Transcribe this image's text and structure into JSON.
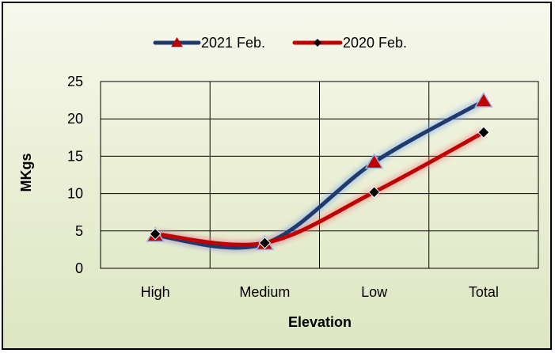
{
  "chart_data": {
    "type": "line",
    "categories": [
      "High",
      "Medium",
      "Low",
      "Total"
    ],
    "series": [
      {
        "name": "2021 Feb.",
        "values": [
          4.4,
          3.3,
          14.2,
          22.4
        ],
        "color": "#1f3a6e",
        "marker": "triangle",
        "marker_color": "#c00000"
      },
      {
        "name": "2020 Feb.",
        "values": [
          4.6,
          3.4,
          10.2,
          18.2
        ],
        "color": "#c00000",
        "marker": "diamond",
        "marker_color": "#000000"
      }
    ],
    "xlabel": "Elevation",
    "ylabel": "MKgs",
    "ylim": [
      0,
      25
    ],
    "yticks": [
      "0",
      "5",
      "10",
      "15",
      "20",
      "25"
    ],
    "grid": true,
    "legend_position": "top-center",
    "smooth": true
  }
}
